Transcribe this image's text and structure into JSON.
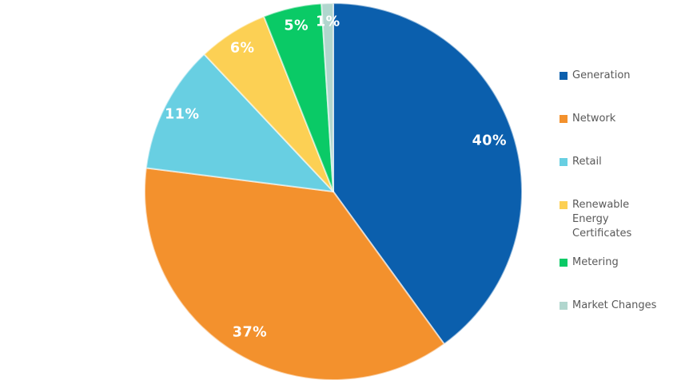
{
  "chart_data": {
    "type": "pie",
    "title": "",
    "categories": [
      "Generation",
      "Network",
      "Retail",
      "Renewable Energy Certificates",
      "Metering",
      "Market Changes"
    ],
    "values": [
      40,
      37,
      11,
      6,
      5,
      1
    ],
    "data_labels": [
      "40%",
      "37%",
      "11%",
      "6%",
      "5%",
      "1%"
    ],
    "colors": [
      "#0b5fad",
      "#f3912d",
      "#68cfe2",
      "#fcd054",
      "#0aca66",
      "#b1d6ce"
    ],
    "label_color": "#ffffff",
    "start_angle_deg": 0,
    "direction": "clockwise",
    "legend": {
      "position": "right",
      "text_color": "#595959",
      "entries": [
        "Generation",
        "Network",
        "Retail",
        "Renewable Energy Certificates",
        "Metering",
        "Market Changes"
      ]
    },
    "background": "#ffffff"
  }
}
